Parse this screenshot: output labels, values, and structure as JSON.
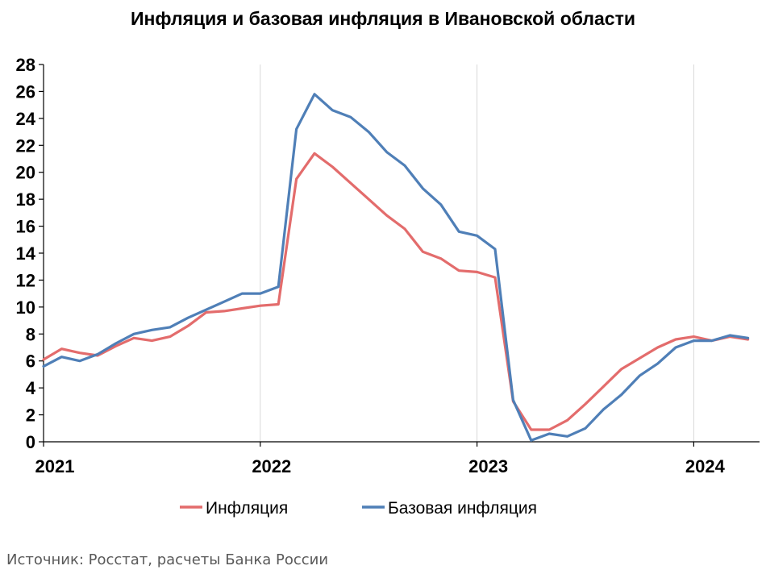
{
  "chart_data": {
    "type": "line",
    "title": "Инфляция и базовая инфляция в Ивановской области",
    "xlabel": "",
    "ylabel": "",
    "ylim": [
      0,
      28
    ],
    "y_ticks": [
      "0",
      "2",
      "4",
      "6",
      "8",
      "10",
      "12",
      "14",
      "16",
      "18",
      "20",
      "22",
      "24",
      "26",
      "28"
    ],
    "x_tick_labels": [
      "2021",
      "2022",
      "2023",
      "2024"
    ],
    "grid": "vertical-at-years",
    "legend_position": "bottom",
    "x": [
      "2021-01",
      "2021-02",
      "2021-03",
      "2021-04",
      "2021-05",
      "2021-06",
      "2021-07",
      "2021-08",
      "2021-09",
      "2021-10",
      "2021-11",
      "2021-12",
      "2022-01",
      "2022-02",
      "2022-03",
      "2022-04",
      "2022-05",
      "2022-06",
      "2022-07",
      "2022-08",
      "2022-09",
      "2022-10",
      "2022-11",
      "2022-12",
      "2023-01",
      "2023-02",
      "2023-03",
      "2023-04",
      "2023-05",
      "2023-06",
      "2023-07",
      "2023-08",
      "2023-09",
      "2023-10",
      "2023-11",
      "2023-12",
      "2024-01",
      "2024-02",
      "2024-03",
      "2024-04"
    ],
    "series": [
      {
        "name": "Инфляция",
        "color": "#e36c6c",
        "values": [
          6.1,
          6.9,
          6.6,
          6.4,
          7.1,
          7.7,
          7.5,
          7.8,
          8.6,
          9.6,
          9.7,
          9.9,
          10.1,
          10.2,
          19.5,
          21.4,
          20.4,
          19.2,
          18.0,
          16.8,
          15.8,
          14.1,
          13.6,
          12.7,
          12.6,
          12.2,
          3.0,
          0.9,
          0.9,
          1.6,
          2.8,
          4.1,
          5.4,
          6.2,
          7.0,
          7.6,
          7.8,
          7.5,
          7.8,
          7.6
        ]
      },
      {
        "name": "Базовая инфляция",
        "color": "#4f7fb7",
        "values": [
          5.6,
          6.3,
          6.0,
          6.5,
          7.3,
          8.0,
          8.3,
          8.5,
          9.2,
          9.8,
          10.4,
          11.0,
          11.0,
          11.5,
          23.2,
          25.8,
          24.6,
          24.1,
          23.0,
          21.5,
          20.5,
          18.8,
          17.6,
          15.6,
          15.3,
          14.3,
          3.1,
          0.1,
          0.6,
          0.4,
          1.0,
          2.4,
          3.5,
          4.9,
          5.8,
          7.0,
          7.5,
          7.5,
          7.9,
          7.7
        ]
      }
    ]
  },
  "source": "Источник: Росстат, расчеты Банка России"
}
